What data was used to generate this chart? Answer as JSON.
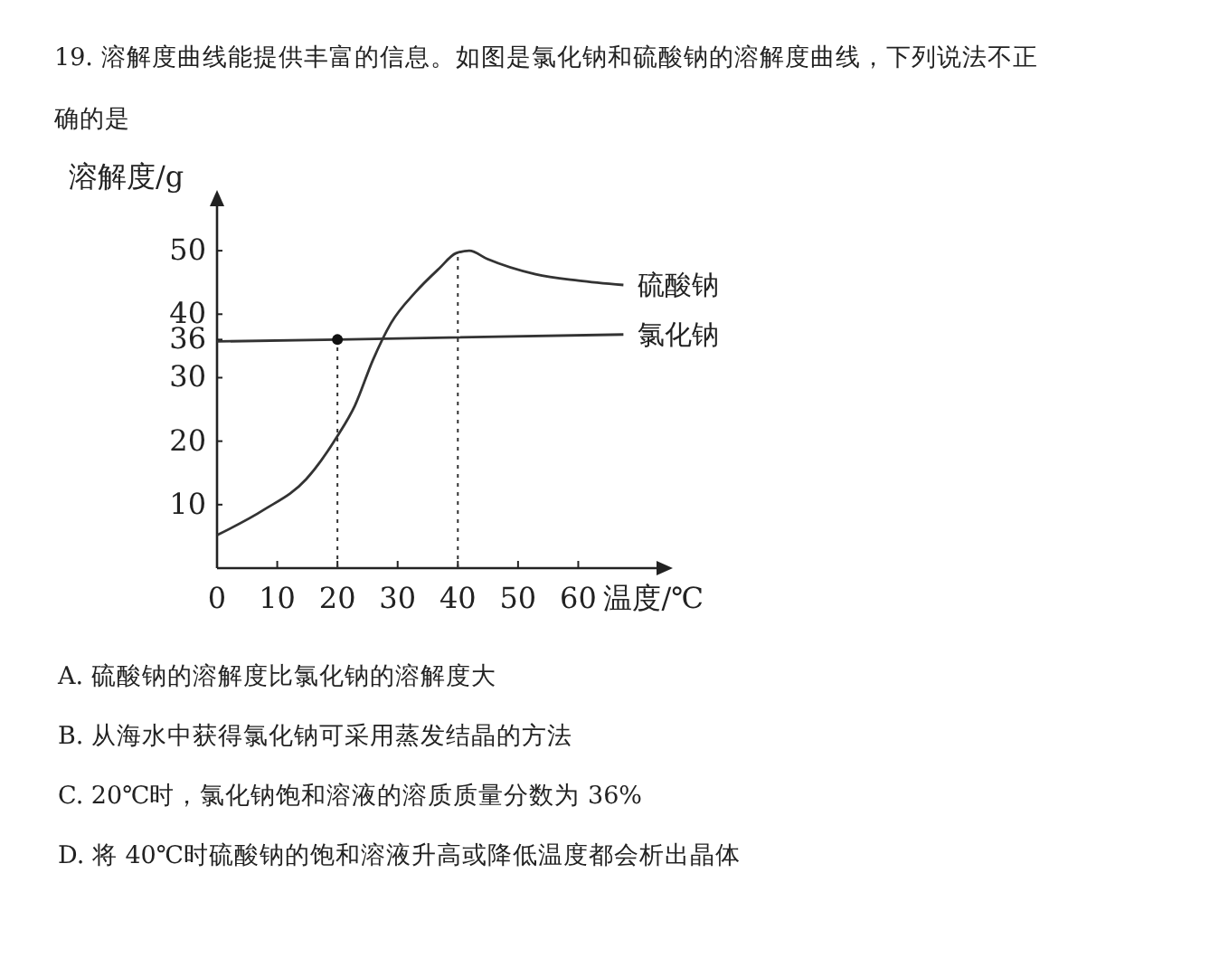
{
  "chart_data": {
    "type": "line",
    "title": "19.  溶解度曲线能提供丰富的信息。如图是氯化钠和硫酸钠的溶解度曲线，下列说法不正确的是",
    "xlabel": "温度/℃",
    "ylabel": "溶解度/g",
    "xlim": [
      0,
      73
    ],
    "ylim": [
      0,
      57
    ],
    "xticks": [
      0,
      10,
      20,
      30,
      40,
      50,
      60
    ],
    "yticks": [
      10,
      20,
      30,
      36,
      40,
      50
    ],
    "grid": false,
    "line_style": "solid",
    "series": [
      {
        "name": "硫酸钠",
        "color": "#333333",
        "x": [
          0,
          7.8,
          14.8,
          20,
          22.9,
          25.9,
          28.9,
          32.9,
          36.9,
          39.7,
          41.9,
          44.9,
          52.9,
          60,
          67.5
        ],
        "values": [
          5.2,
          9.2,
          14,
          20.8,
          25.6,
          32.8,
          38.6,
          43.4,
          47.2,
          49.6,
          50,
          48.7,
          46.3,
          45.3,
          44.6
        ]
      },
      {
        "name": "氯化钠",
        "color": "#333333",
        "x": [
          0,
          20,
          67.5
        ],
        "values": [
          35.7,
          36,
          36.8
        ]
      },
      {
        "type": "scatter",
        "color": "#111111",
        "marker": "circle",
        "x": [
          20
        ],
        "values": [
          36
        ]
      }
    ],
    "ref_lines": [
      {
        "axis": "x",
        "value": 20,
        "line_style": "dotted"
      },
      {
        "axis": "x",
        "value": 40,
        "line_style": "dotted"
      }
    ],
    "annotations": [
      "A.  硫酸钠的溶解度比氯化钠的溶解度大",
      "B.  从海水中获得氯化钠可采用蒸发结晶的方法",
      "C.  20℃时，氯化钠饱和溶液的溶质质量分数为 36%",
      "D.  将 40℃时硫酸钠的饱和溶液升高或降低温度都会析出晶体"
    ]
  }
}
